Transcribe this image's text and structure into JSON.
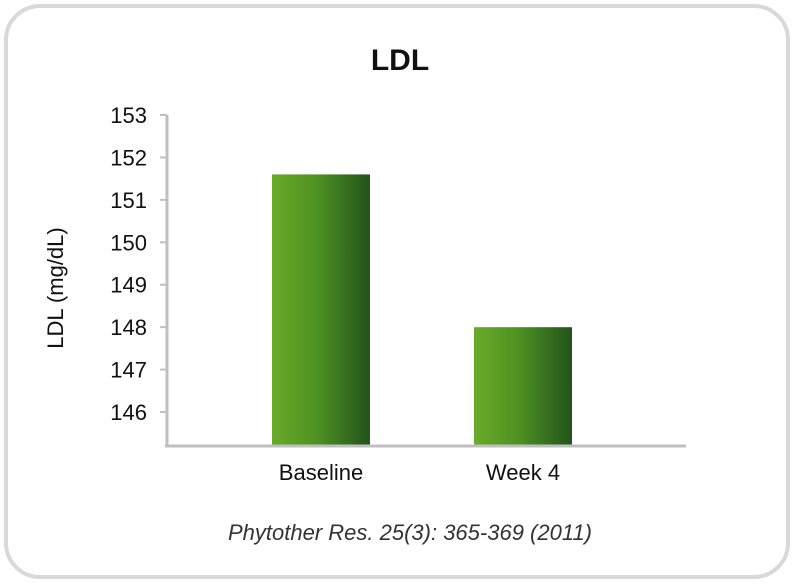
{
  "chart_data": {
    "type": "bar",
    "title": "LDL",
    "xlabel": "",
    "ylabel": "LDL (mg/dL)",
    "categories": [
      "Baseline",
      "Week 4"
    ],
    "values": [
      151.6,
      148.0
    ],
    "ylim": [
      145.2,
      153
    ],
    "yticks": [
      146,
      147,
      148,
      149,
      150,
      151,
      152,
      153
    ],
    "grid": false,
    "bar_colors": {
      "light": "#6aaa2a",
      "mid": "#4e9222",
      "dark": "#23531b"
    }
  },
  "citation": "Phytother Res. 25(3): 365-369 (2011)"
}
